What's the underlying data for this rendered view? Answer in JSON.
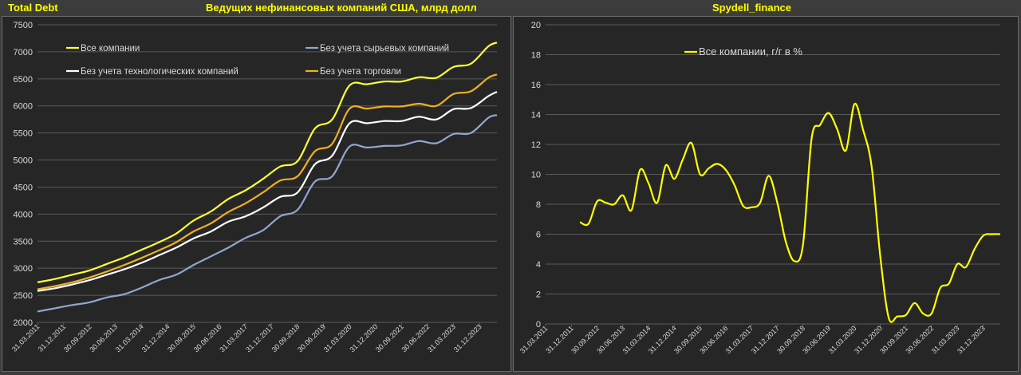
{
  "header": {
    "left_title": "Total Debt",
    "center_title": "Ведущих нефинансовых компаний США, млрд долл",
    "right_title": "Spydell_finance"
  },
  "colors": {
    "all": "#ffff33",
    "ex_tech": "#ffffff",
    "ex_raw": "#8fa8d2",
    "ex_trade": "#f0b020",
    "yoy": "#ffff00",
    "grid": "#5a5a5a",
    "text": "#d9d9d9"
  },
  "chart_data": [
    {
      "type": "line",
      "x_type": "date",
      "x_ticks": [
        "31.03.2011",
        "31.12.2011",
        "30.09.2012",
        "30.06.2013",
        "31.03.2014",
        "31.12.2014",
        "30.09.2015",
        "30.06.2016",
        "31.03.2017",
        "31.12.2017",
        "30.09.2018",
        "30.06.2019",
        "31.03.2020",
        "31.12.2020",
        "30.09.2021",
        "30.06.2022",
        "31.03.2023",
        "31.12.2023"
      ],
      "x_range": [
        "2011-03-31",
        "2024-06-30"
      ],
      "ylim": [
        2000,
        7500
      ],
      "y_ticks": [
        "2000",
        "2500",
        "3000",
        "3500",
        "4000",
        "4500",
        "5000",
        "5500",
        "6000",
        "6500",
        "7000",
        "7500"
      ],
      "legend_position": "top",
      "grid": true,
      "series": [
        {
          "name": "Все компании",
          "color_key": "all",
          "points": [
            [
              "2011-03-31",
              2740
            ],
            [
              "2011-09-30",
              2800
            ],
            [
              "2012-03-31",
              2880
            ],
            [
              "2012-09-30",
              2960
            ],
            [
              "2013-03-31",
              3080
            ],
            [
              "2013-09-30",
              3200
            ],
            [
              "2014-03-31",
              3340
            ],
            [
              "2014-09-30",
              3480
            ],
            [
              "2015-03-31",
              3640
            ],
            [
              "2015-09-30",
              3880
            ],
            [
              "2016-03-31",
              4050
            ],
            [
              "2016-09-30",
              4280
            ],
            [
              "2017-03-31",
              4440
            ],
            [
              "2017-09-30",
              4650
            ],
            [
              "2018-03-31",
              4880
            ],
            [
              "2018-09-30",
              4980
            ],
            [
              "2019-03-31",
              5580
            ],
            [
              "2019-09-30",
              5750
            ],
            [
              "2020-03-31",
              6380
            ],
            [
              "2020-09-30",
              6400
            ],
            [
              "2021-03-31",
              6450
            ],
            [
              "2021-09-30",
              6450
            ],
            [
              "2022-03-31",
              6530
            ],
            [
              "2022-09-30",
              6520
            ],
            [
              "2023-03-31",
              6720
            ],
            [
              "2023-09-30",
              6780
            ],
            [
              "2024-03-31",
              7100
            ],
            [
              "2024-06-30",
              7170
            ]
          ]
        },
        {
          "name": "Без учета технологических компаний",
          "color_key": "ex_tech",
          "points": [
            [
              "2011-03-31",
              2580
            ],
            [
              "2011-09-30",
              2630
            ],
            [
              "2012-03-31",
              2700
            ],
            [
              "2012-09-30",
              2780
            ],
            [
              "2013-03-31",
              2880
            ],
            [
              "2013-09-30",
              2980
            ],
            [
              "2014-03-31",
              3100
            ],
            [
              "2014-09-30",
              3240
            ],
            [
              "2015-03-31",
              3380
            ],
            [
              "2015-09-30",
              3550
            ],
            [
              "2016-03-31",
              3680
            ],
            [
              "2016-09-30",
              3860
            ],
            [
              "2017-03-31",
              3960
            ],
            [
              "2017-09-30",
              4120
            ],
            [
              "2018-03-31",
              4320
            ],
            [
              "2018-09-30",
              4400
            ],
            [
              "2019-03-31",
              4920
            ],
            [
              "2019-09-30",
              5080
            ],
            [
              "2020-03-31",
              5680
            ],
            [
              "2020-09-30",
              5680
            ],
            [
              "2021-03-31",
              5720
            ],
            [
              "2021-09-30",
              5720
            ],
            [
              "2022-03-31",
              5800
            ],
            [
              "2022-09-30",
              5750
            ],
            [
              "2023-03-31",
              5940
            ],
            [
              "2023-09-30",
              5960
            ],
            [
              "2024-03-31",
              6180
            ],
            [
              "2024-06-30",
              6260
            ]
          ]
        },
        {
          "name": "Без учета сырьевых компаний",
          "color_key": "ex_raw",
          "points": [
            [
              "2011-03-31",
              2200
            ],
            [
              "2011-09-30",
              2260
            ],
            [
              "2012-03-31",
              2320
            ],
            [
              "2012-09-30",
              2370
            ],
            [
              "2013-03-31",
              2460
            ],
            [
              "2013-09-30",
              2520
            ],
            [
              "2014-03-31",
              2640
            ],
            [
              "2014-09-30",
              2780
            ],
            [
              "2015-03-31",
              2880
            ],
            [
              "2015-09-30",
              3060
            ],
            [
              "2016-03-31",
              3220
            ],
            [
              "2016-09-30",
              3380
            ],
            [
              "2017-03-31",
              3560
            ],
            [
              "2017-09-30",
              3700
            ],
            [
              "2018-03-31",
              3960
            ],
            [
              "2018-09-30",
              4080
            ],
            [
              "2019-03-31",
              4600
            ],
            [
              "2019-09-30",
              4700
            ],
            [
              "2020-03-31",
              5250
            ],
            [
              "2020-09-30",
              5230
            ],
            [
              "2021-03-31",
              5260
            ],
            [
              "2021-09-30",
              5270
            ],
            [
              "2022-03-31",
              5350
            ],
            [
              "2022-09-30",
              5310
            ],
            [
              "2023-03-31",
              5480
            ],
            [
              "2023-09-30",
              5500
            ],
            [
              "2024-03-31",
              5780
            ],
            [
              "2024-06-30",
              5830
            ]
          ]
        },
        {
          "name": "Без учета торговли",
          "color_key": "ex_trade",
          "points": [
            [
              "2011-03-31",
              2610
            ],
            [
              "2011-09-30",
              2670
            ],
            [
              "2012-03-31",
              2740
            ],
            [
              "2012-09-30",
              2830
            ],
            [
              "2013-03-31",
              2940
            ],
            [
              "2013-09-30",
              3060
            ],
            [
              "2014-03-31",
              3190
            ],
            [
              "2014-09-30",
              3330
            ],
            [
              "2015-03-31",
              3480
            ],
            [
              "2015-09-30",
              3680
            ],
            [
              "2016-03-31",
              3830
            ],
            [
              "2016-09-30",
              4040
            ],
            [
              "2017-03-31",
              4200
            ],
            [
              "2017-09-30",
              4400
            ],
            [
              "2018-03-31",
              4620
            ],
            [
              "2018-09-30",
              4700
            ],
            [
              "2019-03-31",
              5160
            ],
            [
              "2019-09-30",
              5300
            ],
            [
              "2020-03-31",
              5950
            ],
            [
              "2020-09-30",
              5950
            ],
            [
              "2021-03-31",
              5990
            ],
            [
              "2021-09-30",
              5990
            ],
            [
              "2022-03-31",
              6040
            ],
            [
              "2022-09-30",
              6000
            ],
            [
              "2023-03-31",
              6220
            ],
            [
              "2023-09-30",
              6270
            ],
            [
              "2024-03-31",
              6520
            ],
            [
              "2024-06-30",
              6580
            ]
          ]
        }
      ]
    },
    {
      "type": "line",
      "x_type": "date",
      "x_ticks": [
        "31.03.2011",
        "31.12.2011",
        "30.09.2012",
        "30.06.2013",
        "31.03.2014",
        "31.12.2014",
        "30.09.2015",
        "30.06.2016",
        "31.03.2017",
        "31.12.2017",
        "30.09.2018",
        "30.06.2019",
        "31.03.2020",
        "31.12.2020",
        "30.09.2021",
        "30.06.2022",
        "31.03.2023",
        "31.12.2023"
      ],
      "x_range": [
        "2011-03-31",
        "2024-06-30"
      ],
      "ylim": [
        0,
        20
      ],
      "y_ticks": [
        "0",
        "2",
        "4",
        "6",
        "8",
        "10",
        "12",
        "14",
        "16",
        "18",
        "20"
      ],
      "legend_position": "top-left",
      "grid": true,
      "series": [
        {
          "name": "Все компании, г/г в %",
          "color_key": "yoy",
          "points": [
            [
              "2012-03-31",
              6.8
            ],
            [
              "2012-06-30",
              6.7
            ],
            [
              "2012-09-30",
              8.2
            ],
            [
              "2012-12-31",
              8.1
            ],
            [
              "2013-03-31",
              8.0
            ],
            [
              "2013-06-30",
              8.6
            ],
            [
              "2013-09-30",
              7.6
            ],
            [
              "2013-12-31",
              10.3
            ],
            [
              "2014-03-31",
              9.4
            ],
            [
              "2014-06-30",
              8.1
            ],
            [
              "2014-09-30",
              10.6
            ],
            [
              "2014-12-31",
              9.7
            ],
            [
              "2015-03-31",
              11.0
            ],
            [
              "2015-06-30",
              12.1
            ],
            [
              "2015-09-30",
              10.0
            ],
            [
              "2015-12-31",
              10.4
            ],
            [
              "2016-03-31",
              10.7
            ],
            [
              "2016-06-30",
              10.3
            ],
            [
              "2016-09-30",
              9.3
            ],
            [
              "2016-12-31",
              7.9
            ],
            [
              "2017-03-31",
              7.8
            ],
            [
              "2017-06-30",
              8.1
            ],
            [
              "2017-09-30",
              9.9
            ],
            [
              "2017-12-31",
              8.1
            ],
            [
              "2018-03-31",
              5.5
            ],
            [
              "2018-06-30",
              4.2
            ],
            [
              "2018-09-30",
              5.3
            ],
            [
              "2018-12-31",
              12.4
            ],
            [
              "2019-03-31",
              13.3
            ],
            [
              "2019-06-30",
              14.1
            ],
            [
              "2019-09-30",
              13.0
            ],
            [
              "2019-12-31",
              11.6
            ],
            [
              "2020-03-31",
              14.7
            ],
            [
              "2020-06-30",
              13.0
            ],
            [
              "2020-09-30",
              10.5
            ],
            [
              "2020-12-31",
              4.5
            ],
            [
              "2021-03-31",
              0.4
            ],
            [
              "2021-06-30",
              0.5
            ],
            [
              "2021-09-30",
              0.6
            ],
            [
              "2021-12-31",
              1.4
            ],
            [
              "2022-03-31",
              0.7
            ],
            [
              "2022-06-30",
              0.7
            ],
            [
              "2022-09-30",
              2.4
            ],
            [
              "2022-12-31",
              2.7
            ],
            [
              "2023-03-31",
              4.0
            ],
            [
              "2023-06-30",
              3.8
            ],
            [
              "2023-09-30",
              5.0
            ],
            [
              "2023-12-31",
              5.9
            ],
            [
              "2024-03-31",
              6.0
            ],
            [
              "2024-06-30",
              6.0
            ]
          ]
        }
      ]
    }
  ]
}
